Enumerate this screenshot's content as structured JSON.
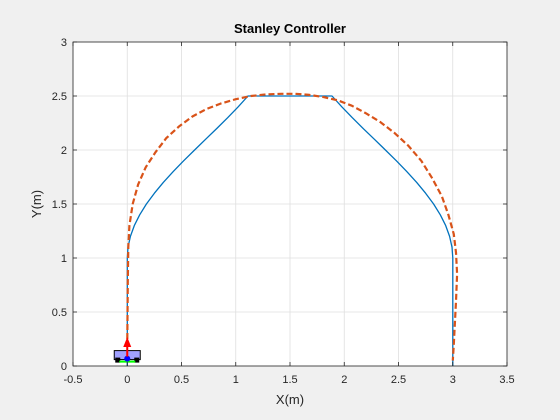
{
  "chart_data": {
    "type": "line",
    "title": "Stanley Controller",
    "xlabel": "X(m)",
    "ylabel": "Y(m)",
    "xlim": [
      -0.5,
      3.5
    ],
    "ylim": [
      0,
      3
    ],
    "xticks": [
      -0.5,
      0,
      0.5,
      1,
      1.5,
      2,
      2.5,
      3,
      3.5
    ],
    "xtick_labels": [
      "-0.5",
      "0",
      "0.5",
      "1",
      "1.5",
      "2",
      "2.5",
      "3",
      "3.5"
    ],
    "yticks": [
      0,
      0.5,
      1,
      1.5,
      2,
      2.5,
      3
    ],
    "ytick_labels": [
      "0",
      "0.5",
      "1",
      "1.5",
      "2",
      "2.5",
      "3"
    ],
    "grid": true,
    "series": [
      {
        "role": "reference path",
        "color": "#0072bd",
        "style": "solid",
        "x": [
          0,
          0,
          0.0073,
          0.0293,
          0.0654,
          0.1149,
          0.1768,
          0.2499,
          0.3326,
          0.4232,
          0.5198,
          0.6205,
          0.7232,
          0.8259,
          0.9264,
          1.0227,
          1.1129,
          1.1953,
          1.2684,
          1.3308,
          1.3815,
          1.4197,
          1.4447,
          1.4562,
          1.5,
          1.5438,
          1.5553,
          1.5803,
          1.6185,
          1.6692,
          1.7316,
          1.8047,
          1.8871,
          1.9773,
          2.0736,
          2.1741,
          2.2768,
          2.3795,
          2.4802,
          2.5768,
          2.6674,
          2.7501,
          2.8232,
          2.8851,
          2.9346,
          2.9707,
          2.9927,
          3,
          3
        ],
        "y": [
          0,
          1.0,
          1.1,
          1.2,
          1.3,
          1.4,
          1.5,
          1.6,
          1.7,
          1.8,
          1.9,
          2.0,
          2.1,
          2.2,
          2.3,
          2.4,
          2.5,
          2.5,
          2.5,
          2.5,
          2.5,
          2.5,
          2.5,
          2.5,
          2.5,
          2.5,
          2.5,
          2.5,
          2.5,
          2.5,
          2.5,
          2.5,
          2.5,
          2.4,
          2.3,
          2.2,
          2.1,
          2.0,
          1.9,
          1.8,
          1.7,
          1.6,
          1.5,
          1.4,
          1.3,
          1.2,
          1.1,
          1.0,
          0
        ]
      },
      {
        "role": "vehicle trajectory",
        "color": "#d95319",
        "style": "dashed",
        "x": [
          0,
          0.005,
          0.01,
          0.02,
          0.05,
          0.1,
          0.17,
          0.26,
          0.36,
          0.48,
          0.6,
          0.73,
          0.86,
          1.0,
          1.14,
          1.28,
          1.42,
          1.55,
          1.68,
          1.81,
          1.94,
          2.07,
          2.2,
          2.33,
          2.46,
          2.59,
          2.71,
          2.81,
          2.9,
          2.96,
          3.01,
          3.03,
          3.04,
          3.03,
          3.02,
          3.01,
          3.0
        ],
        "y": [
          0.25,
          0.8,
          1.1,
          1.3,
          1.5,
          1.68,
          1.84,
          1.98,
          2.11,
          2.22,
          2.31,
          2.38,
          2.43,
          2.47,
          2.5,
          2.515,
          2.52,
          2.52,
          2.51,
          2.49,
          2.46,
          2.41,
          2.34,
          2.26,
          2.16,
          2.04,
          1.9,
          1.74,
          1.57,
          1.4,
          1.22,
          1.05,
          0.85,
          0.6,
          0.4,
          0.2,
          0.05
        ]
      }
    ],
    "vehicle": {
      "x": 0,
      "y": 0.05,
      "heading_arrow_to_y": 0.25,
      "body_color": "#a0a0ff",
      "wheel_color": "#000000",
      "arrow_color": "#ff0000",
      "axle_color": "#00ff00"
    }
  }
}
